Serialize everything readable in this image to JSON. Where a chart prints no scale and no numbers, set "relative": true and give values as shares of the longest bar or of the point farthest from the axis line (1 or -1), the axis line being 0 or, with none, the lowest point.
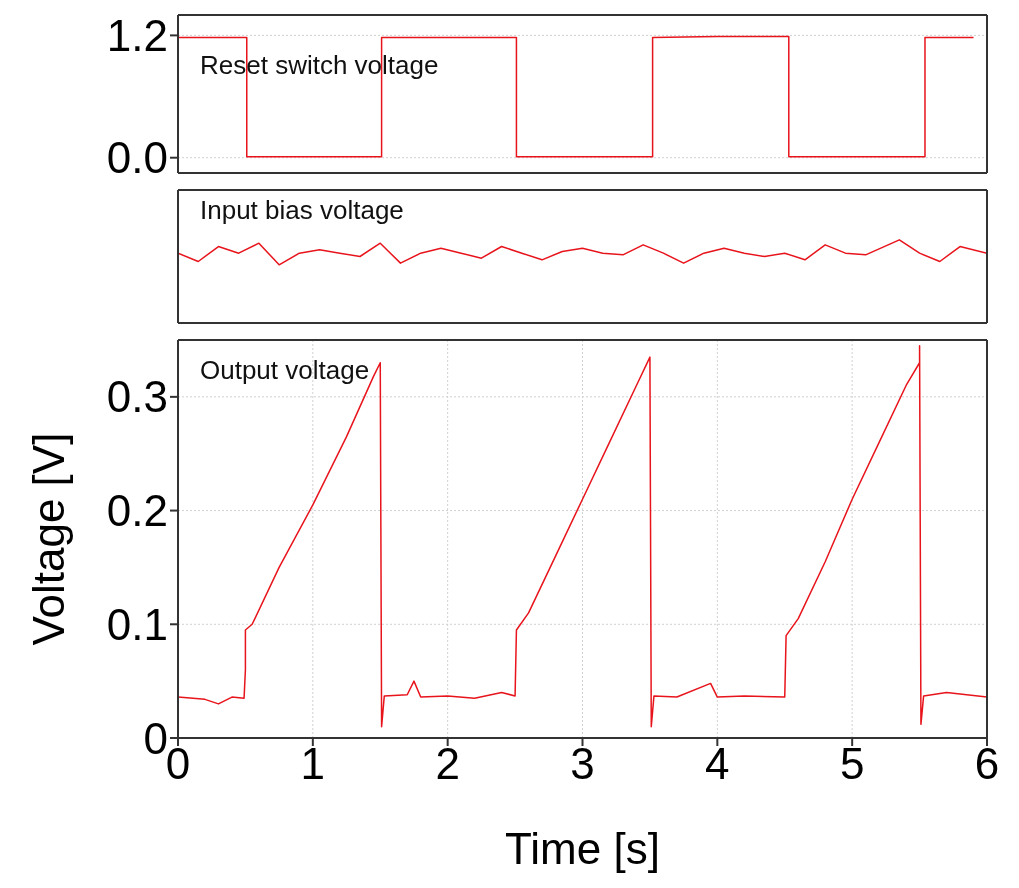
{
  "chart_data": [
    {
      "type": "line",
      "annotations": [
        "Reset switch voltage"
      ],
      "xlim": [
        0,
        6
      ],
      "xticks": [
        0,
        1,
        2,
        3,
        4,
        5,
        6
      ],
      "ylim": [
        -0.15,
        1.4
      ],
      "yticks": [
        {
          "value": 0,
          "label": "0.0"
        },
        {
          "value": 1.2,
          "label": "1.2"
        }
      ],
      "grid": true,
      "tick_labels": "y",
      "series": [
        {
          "color": "#e8141c",
          "x": [
            0,
            0.3,
            0.51,
            0.51,
            1.0,
            1.51,
            1.51,
            2.0,
            2.51,
            2.51,
            3.0,
            3.52,
            3.52,
            4.0,
            4.53,
            4.53,
            5.0,
            5.54,
            5.54,
            5.9
          ],
          "values": [
            1.18,
            1.18,
            1.18,
            0.01,
            0.01,
            0.01,
            1.18,
            1.18,
            1.18,
            0.01,
            0.01,
            0.01,
            1.18,
            1.19,
            1.19,
            0.01,
            0.01,
            0.01,
            1.18,
            1.18
          ]
        }
      ]
    },
    {
      "type": "line",
      "annotations": [
        "Input bias voltage"
      ],
      "xlim": [
        0,
        6
      ],
      "xticks": [
        0,
        1,
        2,
        3,
        4,
        5,
        6
      ],
      "relative": true,
      "grid": "x",
      "tick_labels": false,
      "series": [
        {
          "color": "#e8141c",
          "x": [
            0,
            0.15,
            0.3,
            0.45,
            0.6,
            0.75,
            0.9,
            1.05,
            1.2,
            1.35,
            1.5,
            1.65,
            1.8,
            1.95,
            2.1,
            2.25,
            2.4,
            2.55,
            2.7,
            2.85,
            3.0,
            3.15,
            3.3,
            3.45,
            3.6,
            3.75,
            3.9,
            4.05,
            4.2,
            4.35,
            4.5,
            4.65,
            4.8,
            4.95,
            5.1,
            5.35,
            5.5,
            5.65,
            5.8,
            6.0
          ],
          "values": [
            0.84,
            0.74,
            0.92,
            0.84,
            0.96,
            0.7,
            0.84,
            0.88,
            0.84,
            0.8,
            0.96,
            0.72,
            0.84,
            0.9,
            0.84,
            0.78,
            0.92,
            0.84,
            0.76,
            0.86,
            0.9,
            0.84,
            0.82,
            0.94,
            0.84,
            0.72,
            0.84,
            0.9,
            0.84,
            0.8,
            0.84,
            0.76,
            0.94,
            0.84,
            0.82,
            1.0,
            0.84,
            0.74,
            0.92,
            0.84
          ]
        }
      ]
    },
    {
      "type": "line",
      "annotations": [
        "Output voltage"
      ],
      "xlabel": "Time [s]",
      "ylabel": "Voltage [V]",
      "xlim": [
        0,
        6
      ],
      "xticks": [
        0,
        1,
        2,
        3,
        4,
        5,
        6
      ],
      "ylim": [
        0,
        0.35
      ],
      "yticks": [
        0,
        0.1,
        0.2,
        0.3
      ],
      "grid": true,
      "series": [
        {
          "color": "#e8141c",
          "x": [
            0,
            0.2,
            0.3,
            0.4,
            0.49,
            0.5,
            0.5,
            0.55,
            0.75,
            1.0,
            1.25,
            1.45,
            1.5,
            1.51,
            1.53,
            1.7,
            1.75,
            1.8,
            2.0,
            2.2,
            2.4,
            2.5,
            2.51,
            2.6,
            2.8,
            3.0,
            3.2,
            3.4,
            3.5,
            3.51,
            3.53,
            3.7,
            3.95,
            4.0,
            4.2,
            4.5,
            4.51,
            4.6,
            4.8,
            5.0,
            5.2,
            5.4,
            5.5,
            5.5,
            5.51,
            5.53,
            5.7,
            6.0
          ],
          "values": [
            0.036,
            0.034,
            0.03,
            0.036,
            0.035,
            0.06,
            0.095,
            0.1,
            0.15,
            0.205,
            0.265,
            0.318,
            0.33,
            0.01,
            0.037,
            0.038,
            0.05,
            0.036,
            0.037,
            0.035,
            0.04,
            0.037,
            0.095,
            0.11,
            0.16,
            0.21,
            0.26,
            0.31,
            0.335,
            0.01,
            0.037,
            0.036,
            0.048,
            0.036,
            0.037,
            0.036,
            0.09,
            0.105,
            0.155,
            0.21,
            0.26,
            0.31,
            0.33,
            0.345,
            0.012,
            0.037,
            0.04,
            0.036
          ]
        }
      ]
    }
  ]
}
